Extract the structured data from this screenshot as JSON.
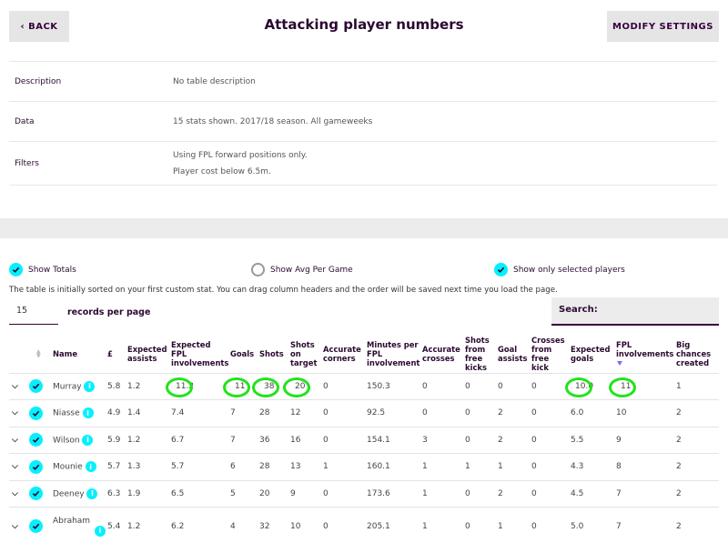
{
  "header": {
    "back_label": "BACK",
    "title": "Attacking player numbers",
    "modify_label": "MODIFY SETTINGS"
  },
  "meta": {
    "description_key": "Description",
    "description_value": "No table description",
    "data_key": "Data",
    "data_value": "15 stats shown. 2017/18 season. All gameweeks",
    "filters_key": "Filters",
    "filters_line1": "Using FPL forward positions only.",
    "filters_line2": "Player cost below 6.5m."
  },
  "options": {
    "totals": "Show Totals",
    "avg": "Show Avg Per Game",
    "selected": "Show only selected players"
  },
  "note": "The table is initially sorted on your first custom stat. You can drag column headers and the order will be saved next time you load the page.",
  "records": {
    "value": "15",
    "label": "records per page"
  },
  "search_label": "Search:",
  "columns": {
    "name": "Name",
    "price": "£",
    "xa": [
      "Expected",
      "assists"
    ],
    "xfpl": [
      "Expected",
      "FPL",
      "involvements"
    ],
    "goals": "Goals",
    "shots": "Shots",
    "sot": [
      "Shots",
      "on",
      "target"
    ],
    "corners": [
      "Accurate",
      "corners"
    ],
    "mins": [
      "Minutes per",
      "FPL",
      "involvement"
    ],
    "crosses": [
      "Accurate",
      "crosses"
    ],
    "sfk": [
      "Shots",
      "from",
      "free",
      "kicks"
    ],
    "ga": [
      "Goal",
      "assists"
    ],
    "cfk": [
      "Crosses",
      "from",
      "free",
      "kick"
    ],
    "xg": [
      "Expected",
      "goals"
    ],
    "fpl": [
      "FPL",
      "involvements"
    ],
    "bcc": [
      "Big",
      "chances",
      "created"
    ]
  },
  "rows": [
    {
      "name": "Murray",
      "price": "5.8",
      "xa": "1.2",
      "xfpl": "11.2",
      "goals": "11",
      "shots": "38",
      "sot": "20",
      "corners": "0",
      "mins": "150.3",
      "crosses": "0",
      "sfk": "0",
      "ga": "0",
      "cfk": "0",
      "xg": "10.0",
      "fpl": "11",
      "bcc": "1"
    },
    {
      "name": "Niasse",
      "price": "4.9",
      "xa": "1.4",
      "xfpl": "7.4",
      "goals": "7",
      "shots": "28",
      "sot": "12",
      "corners": "0",
      "mins": "92.5",
      "crosses": "0",
      "sfk": "0",
      "ga": "2",
      "cfk": "0",
      "xg": "6.0",
      "fpl": "10",
      "bcc": "2"
    },
    {
      "name": "Wilson",
      "price": "5.9",
      "xa": "1.2",
      "xfpl": "6.7",
      "goals": "7",
      "shots": "36",
      "sot": "16",
      "corners": "0",
      "mins": "154.1",
      "crosses": "3",
      "sfk": "0",
      "ga": "2",
      "cfk": "0",
      "xg": "5.5",
      "fpl": "9",
      "bcc": "2"
    },
    {
      "name": "Mounie",
      "price": "5.7",
      "xa": "1.3",
      "xfpl": "5.7",
      "goals": "6",
      "shots": "28",
      "sot": "13",
      "corners": "1",
      "mins": "160.1",
      "crosses": "1",
      "sfk": "1",
      "ga": "1",
      "cfk": "0",
      "xg": "4.3",
      "fpl": "8",
      "bcc": "2"
    },
    {
      "name": "Deeney",
      "price": "6.3",
      "xa": "1.9",
      "xfpl": "6.5",
      "goals": "5",
      "shots": "20",
      "sot": "9",
      "corners": "0",
      "mins": "173.6",
      "crosses": "1",
      "sfk": "0",
      "ga": "2",
      "cfk": "0",
      "xg": "4.5",
      "fpl": "7",
      "bcc": "2"
    },
    {
      "name": "Abraham",
      "price": "5.4",
      "xa": "1.2",
      "xfpl": "6.2",
      "goals": "4",
      "shots": "32",
      "sot": "10",
      "corners": "0",
      "mins": "205.1",
      "crosses": "1",
      "sfk": "0",
      "ga": "1",
      "cfk": "0",
      "xg": "5.0",
      "fpl": "7",
      "bcc": "2"
    }
  ],
  "highlighted_cells": [
    "xfpl",
    "goals",
    "shots",
    "sot",
    "xg",
    "fpl"
  ],
  "colors": {
    "accent": "#05f0ff",
    "brand": "#37003c",
    "highlight": "#22e31c"
  }
}
